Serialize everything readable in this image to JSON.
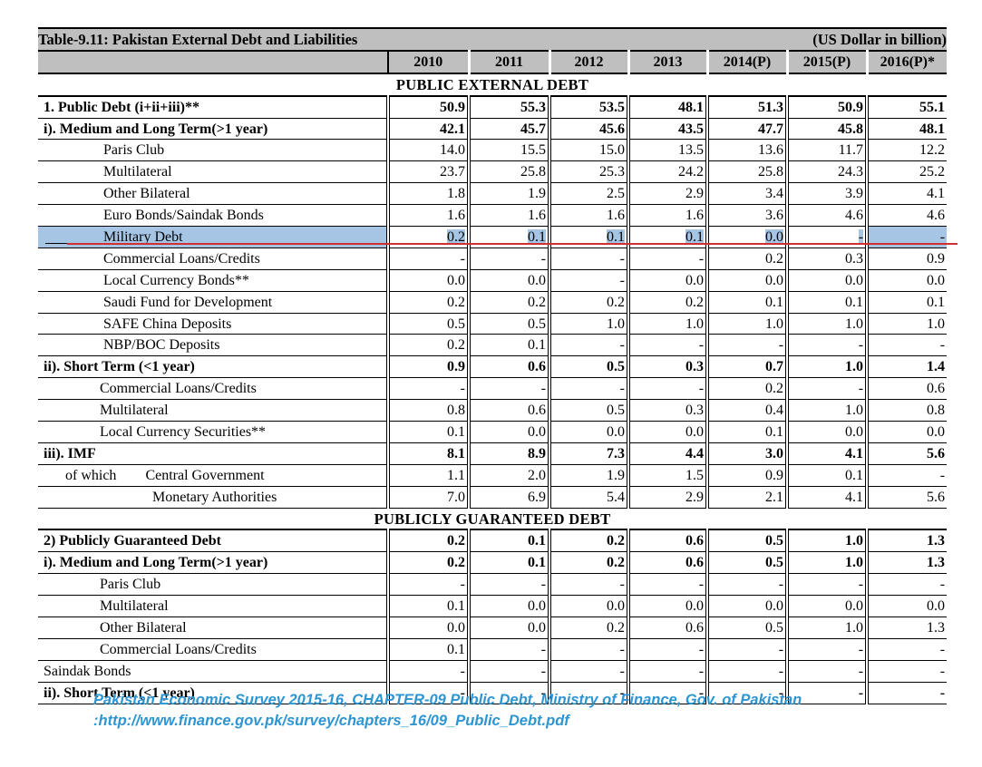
{
  "title": "Table-9.11: Pakistan External Debt and Liabilities",
  "unit": "(US Dollar in billion)",
  "years": [
    "2010",
    "2011",
    "2012",
    "2013",
    "2014(P)",
    "2015(P)",
    "2016(P)*"
  ],
  "sections": [
    {
      "heading": "PUBLIC EXTERNAL DEBT",
      "rows": [
        {
          "label": "1.  Public Debt (i+ii+iii)**",
          "indent": "ind0",
          "bold": true,
          "values": [
            "50.9",
            "55.3",
            "53.5",
            "48.1",
            "51.3",
            "50.9",
            "55.1"
          ]
        },
        {
          "label": "i).  Medium and Long Term(>1 year)",
          "indent": "ind0",
          "bold": true,
          "values": [
            "42.1",
            "45.7",
            "45.6",
            "43.5",
            "47.7",
            "45.8",
            "48.1"
          ]
        },
        {
          "label": "Paris Club",
          "indent": "ind1",
          "bold": false,
          "values": [
            "14.0",
            "15.5",
            "15.0",
            "13.5",
            "13.6",
            "11.7",
            "12.2"
          ]
        },
        {
          "label": "Multilateral",
          "indent": "ind1",
          "bold": false,
          "values": [
            "23.7",
            "25.8",
            "25.3",
            "24.2",
            "25.8",
            "24.3",
            "25.2"
          ]
        },
        {
          "label": "Other Bilateral",
          "indent": "ind1",
          "bold": false,
          "values": [
            "1.8",
            "1.9",
            "2.5",
            "2.9",
            "3.4",
            "3.9",
            "4.1"
          ]
        },
        {
          "label": "Euro Bonds/Saindak Bonds",
          "indent": "ind1",
          "bold": false,
          "values": [
            "1.6",
            "1.6",
            "1.6",
            "1.6",
            "3.6",
            "4.6",
            "4.6"
          ]
        },
        {
          "label": "Military Debt",
          "indent": "ind1",
          "bold": false,
          "highlight": true,
          "values": [
            "0.2",
            "0.1",
            "0.1",
            "0.1",
            "0.0",
            "-",
            "-"
          ]
        },
        {
          "label": "Commercial Loans/Credits",
          "indent": "ind1",
          "bold": false,
          "values": [
            "-",
            "-",
            "-",
            "-",
            "0.2",
            "0.3",
            "0.9"
          ]
        },
        {
          "label": "Local Currency Bonds**",
          "indent": "ind1",
          "bold": false,
          "values": [
            "0.0",
            "0.0",
            "-",
            "0.0",
            "0.0",
            "0.0",
            "0.0"
          ]
        },
        {
          "label": "Saudi Fund for Development",
          "indent": "ind1",
          "bold": false,
          "values": [
            "0.2",
            "0.2",
            "0.2",
            "0.2",
            "0.1",
            "0.1",
            "0.1"
          ]
        },
        {
          "label": "SAFE China Deposits",
          "indent": "ind1",
          "bold": false,
          "values": [
            "0.5",
            "0.5",
            "1.0",
            "1.0",
            "1.0",
            "1.0",
            "1.0"
          ]
        },
        {
          "label": "NBP/BOC Deposits",
          "indent": "ind1",
          "bold": false,
          "values": [
            "0.2",
            "0.1",
            "-",
            "-",
            "-",
            "-",
            "-"
          ]
        },
        {
          "label": "ii).  Short Term (<1 year)",
          "indent": "ind0",
          "bold": true,
          "values": [
            "0.9",
            "0.6",
            "0.5",
            "0.3",
            "0.7",
            "1.0",
            "1.4"
          ]
        },
        {
          "label": "Commercial Loans/Credits",
          "indent": "ind2",
          "bold": false,
          "values": [
            "-",
            "-",
            "-",
            "-",
            "0.2",
            "-",
            "0.6"
          ]
        },
        {
          "label": "Multilateral",
          "indent": "ind2",
          "bold": false,
          "values": [
            "0.8",
            "0.6",
            "0.5",
            "0.3",
            "0.4",
            "1.0",
            "0.8"
          ]
        },
        {
          "label": "Local Currency Securities**",
          "indent": "ind2",
          "bold": false,
          "values": [
            "0.1",
            "0.0",
            "0.0",
            "0.0",
            "0.1",
            "0.0",
            "0.0"
          ]
        },
        {
          "label": "iii). IMF",
          "indent": "ind0",
          "bold": true,
          "values": [
            "8.1",
            "8.9",
            "7.3",
            "4.4",
            "3.0",
            "4.1",
            "5.6"
          ]
        },
        {
          "label": "Central Government",
          "prefix": "of which",
          "indent": "sub",
          "bold": false,
          "values": [
            "1.1",
            "2.0",
            "1.9",
            "1.5",
            "0.9",
            "0.1",
            "-"
          ]
        },
        {
          "label": "Monetary Authorities",
          "indent": "ind3",
          "bold": false,
          "values": [
            "7.0",
            "6.9",
            "5.4",
            "2.9",
            "2.1",
            "4.1",
            "5.6"
          ]
        }
      ]
    },
    {
      "heading": "PUBLICLY GUARANTEED DEBT",
      "rows": [
        {
          "label": "2) Publicly Guaranteed Debt",
          "indent": "ind0",
          "bold": true,
          "values": [
            "0.2",
            "0.1",
            "0.2",
            "0.6",
            "0.5",
            "1.0",
            "1.3"
          ]
        },
        {
          "label": "i). Medium and Long Term(>1 year)",
          "indent": "ind0",
          "bold": true,
          "values": [
            "0.2",
            "0.1",
            "0.2",
            "0.6",
            "0.5",
            "1.0",
            "1.3"
          ]
        },
        {
          "label": "Paris Club",
          "indent": "ind2",
          "bold": false,
          "values": [
            "-",
            "-",
            "-",
            "-",
            "-",
            "-",
            "-"
          ]
        },
        {
          "label": "Multilateral",
          "indent": "ind2",
          "bold": false,
          "values": [
            "0.1",
            "0.0",
            "0.0",
            "0.0",
            "0.0",
            "0.0",
            "0.0"
          ]
        },
        {
          "label": "Other Bilateral",
          "indent": "ind2",
          "bold": false,
          "values": [
            "0.0",
            "0.0",
            "0.2",
            "0.6",
            "0.5",
            "1.0",
            "1.3"
          ]
        },
        {
          "label": "Commercial Loans/Credits",
          "indent": "ind2",
          "bold": false,
          "values": [
            "0.1",
            "-",
            "-",
            "-",
            "-",
            "-",
            "-"
          ]
        },
        {
          "label": "Saindak Bonds",
          "indent": "ind0",
          "bold": false,
          "values": [
            "-",
            "-",
            "-",
            "-",
            "-",
            "-",
            "-"
          ]
        },
        {
          "label": "ii). Short Term (<1 year)",
          "indent": "ind0",
          "bold": true,
          "values": [
            "-",
            "-",
            "-",
            "-",
            "-",
            "-",
            "-"
          ]
        }
      ]
    }
  ],
  "caption": {
    "line1": "Pakistan Economic Survey 2015-16, CHAPTER-09 Public Debt, Ministry of Finance, Gov. of  Pakistan",
    "line2": ":http://www.finance.gov.pk/survey/chapters_16/09_Public_Debt.pdf"
  },
  "colors": {
    "header_bg": "#bfbfbf",
    "highlight": "#a6c4e3",
    "red_line": "#d03030",
    "caption": "#2e95d3"
  }
}
